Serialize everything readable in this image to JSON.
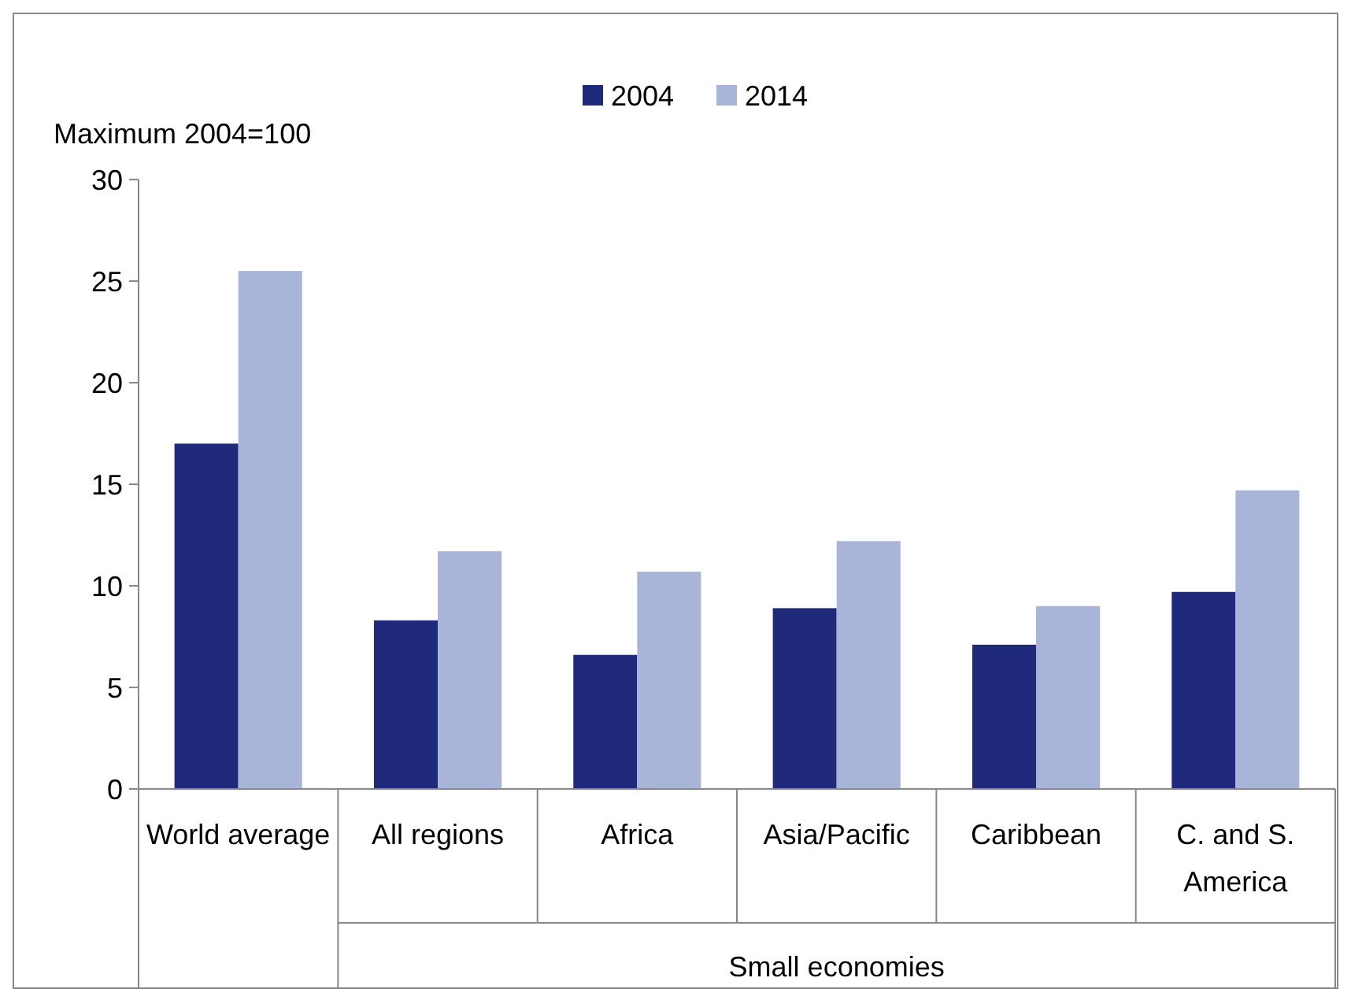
{
  "chart_data": {
    "type": "bar",
    "ylabel": "Maximum 2004=100",
    "categories": [
      "World average",
      "All regions",
      "Africa",
      "Asia/Pacific",
      "Caribbean",
      "C. and S. America"
    ],
    "series": [
      {
        "name": "2004",
        "color": "#1f2a7a",
        "values": [
          17.0,
          8.3,
          6.6,
          8.9,
          7.1,
          9.7
        ]
      },
      {
        "name": "2014",
        "color": "#a9b4d9",
        "values": [
          25.5,
          11.7,
          10.7,
          12.2,
          9.0,
          14.7
        ]
      }
    ],
    "ylim": [
      0,
      30
    ],
    "yticks": [
      0,
      5,
      10,
      15,
      20,
      25,
      30
    ],
    "grid": false,
    "legend": "top",
    "annotations": [
      "Small economies"
    ]
  }
}
